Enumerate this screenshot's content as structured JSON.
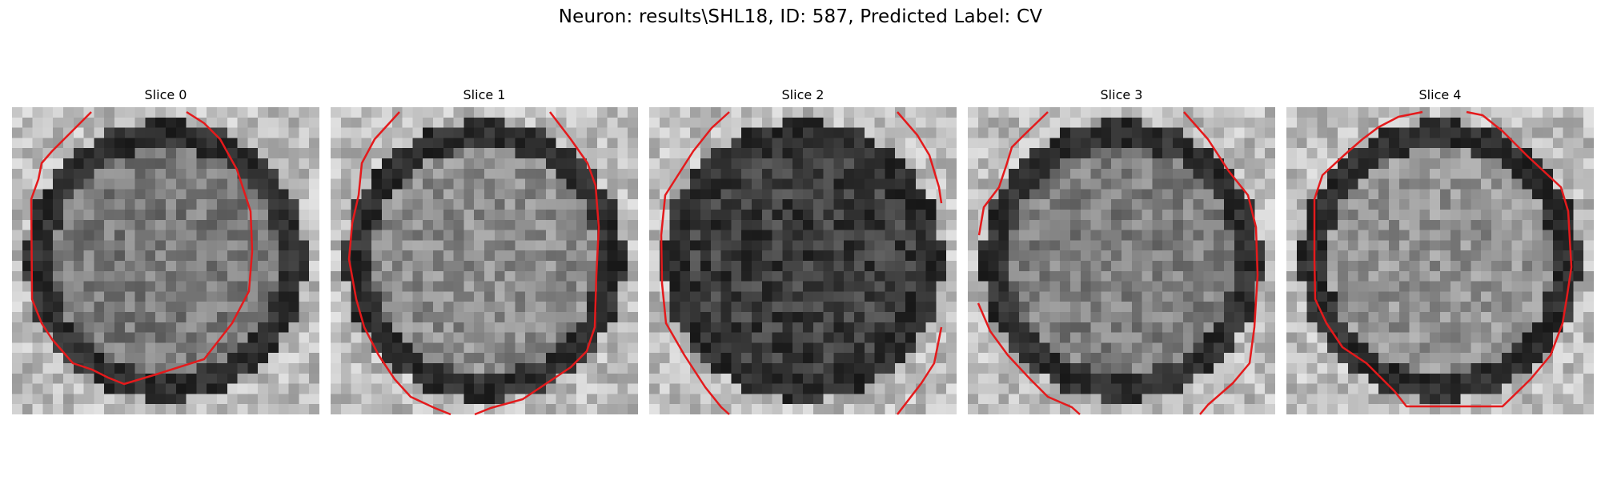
{
  "figure": {
    "title": "Neuron: results\\SHL18, ID: 587, Predicted Label: CV"
  },
  "contour_color": "#e41a1c",
  "slices": [
    {
      "title": "Slice 0",
      "brightness": 0.48
    },
    {
      "title": "Slice 1",
      "brightness": 0.55
    },
    {
      "title": "Slice 2",
      "brightness": 0.24
    },
    {
      "title": "Slice 3",
      "brightness": 0.5
    },
    {
      "title": "Slice 4",
      "brightness": 0.58
    }
  ]
}
